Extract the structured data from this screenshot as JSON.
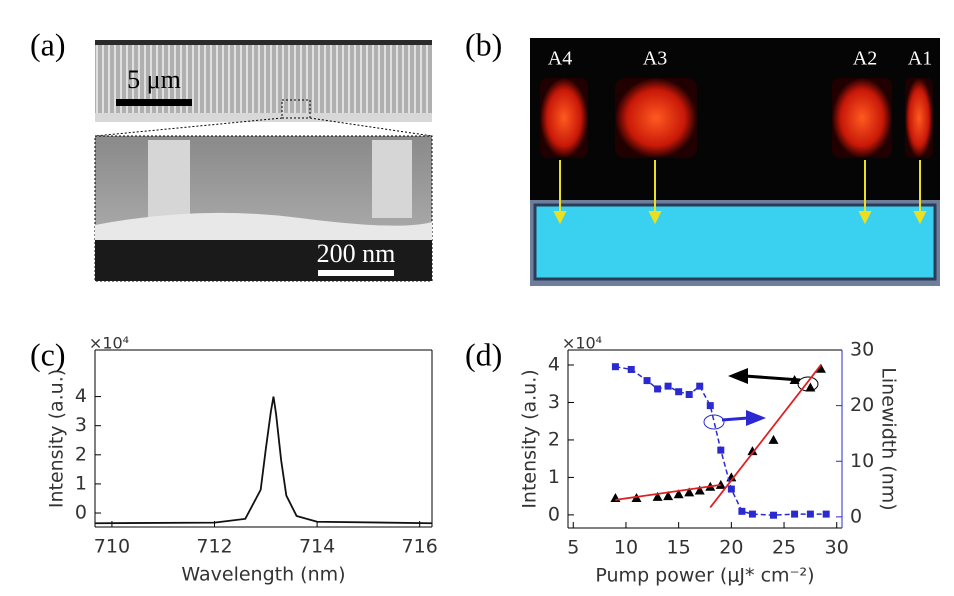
{
  "panels": {
    "a": {
      "label": "(a)",
      "scale_top": "5 μm",
      "scale_bottom": "200 nm"
    },
    "b": {
      "label": "(b)",
      "markers": [
        "A4",
        "A3",
        "A2",
        "A1"
      ]
    }
  },
  "chart_data": [
    {
      "type": "line",
      "panel_label": "(c)",
      "x_label": "Wavelength (nm)",
      "y_label": "Intensity (a.u.)",
      "y_multiplier": "×10⁴",
      "xlim": [
        709.67,
        716.24
      ],
      "xticks": [
        710,
        712,
        714,
        716
      ],
      "ylim": [
        -0.48,
        5.6
      ],
      "yticks": [
        0,
        1,
        2,
        3,
        4
      ],
      "series": [
        {
          "color": "#111111",
          "x": [
            709.67,
            712.0,
            712.6,
            712.9,
            713.0,
            713.1,
            713.15,
            713.2,
            713.3,
            713.4,
            713.6,
            714.0,
            716.24
          ],
          "values": [
            -0.35,
            -0.33,
            -0.2,
            0.8,
            2.2,
            3.5,
            4.0,
            3.4,
            1.8,
            0.6,
            -0.1,
            -0.3,
            -0.35
          ]
        }
      ]
    },
    {
      "type": "line",
      "panel_label": "(d)",
      "x_label": "Pump power (μJ* cm⁻²)",
      "y_label": "Intensity (a.u.)",
      "y2_label": "Linewidth (nm)",
      "y_multiplier": "×10⁴",
      "xlim": [
        4.5,
        30.5
      ],
      "xticks": [
        5,
        10,
        15,
        20,
        25,
        30
      ],
      "ylim": [
        -0.35,
        4.4
      ],
      "yticks": [
        0,
        1,
        2,
        3,
        4
      ],
      "y2lim": [
        -2,
        30
      ],
      "y2ticks": [
        0,
        10,
        20,
        30
      ],
      "y2_color": "#2a2ad0",
      "series": [
        {
          "color": "#000000",
          "marker": "triangle",
          "line": false,
          "x": [
            9,
            11,
            13,
            14,
            15,
            16,
            17,
            18,
            19,
            20,
            22,
            24,
            26,
            27.5,
            28.5
          ],
          "values": [
            0.45,
            0.45,
            0.48,
            0.5,
            0.55,
            0.6,
            0.65,
            0.75,
            0.8,
            1.0,
            1.7,
            2.0,
            3.6,
            3.4,
            3.9
          ]
        },
        {
          "color": "#2a2ad0",
          "marker": "square",
          "line": true,
          "dashed": true,
          "axis": "y2",
          "x": [
            9,
            10.5,
            12,
            13,
            14,
            15,
            16,
            17,
            18,
            19,
            20,
            21,
            22,
            24,
            26,
            27.5,
            29
          ],
          "values": [
            27,
            26.5,
            24.5,
            23,
            23.5,
            22.5,
            22,
            23.5,
            20,
            12,
            5,
            1,
            0.5,
            0.3,
            0.5,
            0.5,
            0.5
          ]
        },
        {
          "color": "#e02020",
          "line": true,
          "x": [
            9,
            19
          ],
          "values": [
            0.4,
            0.8
          ]
        },
        {
          "color": "#e02020",
          "line": true,
          "x": [
            18,
            28.5
          ],
          "values": [
            0.2,
            4.0
          ]
        }
      ]
    }
  ]
}
